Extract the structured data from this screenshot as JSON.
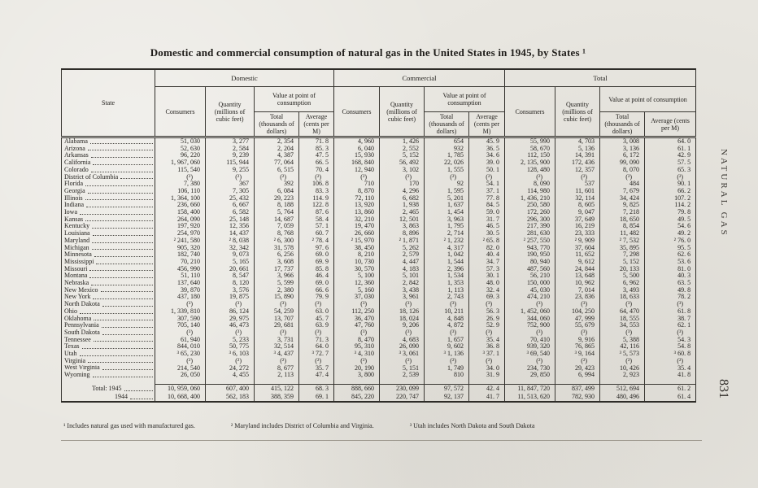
{
  "page": {
    "title": "Domestic and commercial consumption of natural gas in the United States in 1945, by States ¹",
    "side_label": "NATURAL GAS",
    "page_number": "831"
  },
  "table": {
    "state_header": "State",
    "groups": [
      {
        "label": "Domestic"
      },
      {
        "label": "Commercial"
      },
      {
        "label": "Total"
      }
    ],
    "sub_headers": {
      "consumers": "Consumers",
      "quantity": "Quantity (millions of cubic feet)",
      "value": "Value at point of consumption",
      "total": "Total (thousands of dollars)",
      "average": "Average (cents per M)"
    },
    "rows": [
      {
        "state": "Alabama",
        "cells": [
          "51, 030",
          "3, 277",
          "2, 354",
          "71. 8",
          "4, 960",
          "1, 426",
          "654",
          "45. 9",
          "55, 990",
          "4, 703",
          "3, 008",
          "64. 0"
        ]
      },
      {
        "state": "Arizona",
        "cells": [
          "52, 630",
          "2, 584",
          "2, 204",
          "85. 3",
          "6, 040",
          "2, 552",
          "932",
          "36. 5",
          "58, 670",
          "5, 136",
          "3, 136",
          "61. 1"
        ]
      },
      {
        "state": "Arkansas",
        "cells": [
          "96, 220",
          "9, 239",
          "4, 387",
          "47. 5",
          "15, 930",
          "5, 152",
          "1, 785",
          "34. 6",
          "112, 150",
          "14, 391",
          "6, 172",
          "42. 9"
        ]
      },
      {
        "state": "California",
        "cells": [
          "1, 967, 060",
          "115, 944",
          "77, 064",
          "66. 5",
          "168, 840",
          "56, 492",
          "22, 026",
          "39. 0",
          "2, 135, 900",
          "172, 436",
          "99, 090",
          "57. 5"
        ]
      },
      {
        "state": "Colorado",
        "cells": [
          "115, 540",
          "9, 255",
          "6, 515",
          "70. 4",
          "12, 940",
          "3, 102",
          "1, 555",
          "50. 1",
          "128, 480",
          "12, 357",
          "8, 070",
          "65. 3"
        ]
      },
      {
        "state": "District of Columbia",
        "cells": [
          "(²)",
          "(²)",
          "(²)",
          "(²)",
          "(²)",
          "(²)",
          "(²)",
          "(²)",
          "(²)",
          "(²)",
          "(²)",
          "(²)"
        ]
      },
      {
        "state": "Florida",
        "cells": [
          "7, 380",
          "367",
          "392",
          "106. 8",
          "710",
          "170",
          "92",
          "54. 1",
          "8, 090",
          "537",
          "484",
          "90. 1"
        ]
      },
      {
        "state": "Georgia",
        "cells": [
          "106, 110",
          "7, 305",
          "6, 084",
          "83. 3",
          "8, 870",
          "4, 296",
          "1, 595",
          "37. 1",
          "114, 980",
          "11, 601",
          "7, 679",
          "66. 2"
        ]
      },
      {
        "state": "Illinois",
        "cells": [
          "1, 364, 100",
          "25, 432",
          "29, 223",
          "114. 9",
          "72, 110",
          "6, 682",
          "5, 201",
          "77. 8",
          "1, 436, 210",
          "32, 114",
          "34, 424",
          "107. 2"
        ]
      },
      {
        "state": "Indiana",
        "cells": [
          "236, 660",
          "6, 667",
          "8, 188",
          "122. 8",
          "13, 920",
          "1, 938",
          "1, 637",
          "84. 5",
          "250, 580",
          "8, 605",
          "9, 825",
          "114. 2"
        ]
      },
      {
        "state": "Iowa",
        "cells": [
          "158, 400",
          "6, 582",
          "5, 764",
          "87. 6",
          "13, 860",
          "2, 465",
          "1, 454",
          "59. 0",
          "172, 260",
          "9, 047",
          "7, 218",
          "79. 8"
        ]
      },
      {
        "state": "Kansas",
        "cells": [
          "264, 090",
          "25, 148",
          "14, 687",
          "58. 4",
          "32, 210",
          "12, 501",
          "3, 963",
          "31. 7",
          "296, 300",
          "37, 649",
          "18, 650",
          "49. 5"
        ]
      },
      {
        "state": "Kentucky",
        "cells": [
          "197, 920",
          "12, 356",
          "7, 059",
          "57. 1",
          "19, 470",
          "3, 863",
          "1, 795",
          "46. 5",
          "217, 390",
          "16, 219",
          "8, 854",
          "54. 6"
        ]
      },
      {
        "state": "Louisiana",
        "cells": [
          "254, 970",
          "14, 437",
          "8, 768",
          "60. 7",
          "26, 660",
          "8, 896",
          "2, 714",
          "30. 5",
          "281, 630",
          "23, 333",
          "11, 482",
          "49. 2"
        ]
      },
      {
        "state": "Maryland",
        "cells": [
          "² 241, 580",
          "² 8, 038",
          "² 6, 300",
          "² 78. 4",
          "² 15, 970",
          "² 1, 871",
          "² 1, 232",
          "² 65. 8",
          "² 257, 550",
          "² 9, 909",
          "² 7, 532",
          "² 76. 0"
        ]
      },
      {
        "state": "Michigan",
        "cells": [
          "905, 320",
          "32, 342",
          "31, 578",
          "97. 6",
          "38, 450",
          "5, 262",
          "4, 317",
          "82. 0",
          "943, 770",
          "37, 604",
          "35, 895",
          "95. 5"
        ]
      },
      {
        "state": "Minnesota",
        "cells": [
          "182, 740",
          "9, 073",
          "6, 256",
          "69. 0",
          "8, 210",
          "2, 579",
          "1, 042",
          "40. 4",
          "190, 950",
          "11, 652",
          "7, 298",
          "62. 6"
        ]
      },
      {
        "state": "Mississippi",
        "cells": [
          "70, 210",
          "5, 165",
          "3, 608",
          "69. 9",
          "10, 730",
          "4, 447",
          "1, 544",
          "34. 7",
          "80, 940",
          "9, 612",
          "5, 152",
          "53. 6"
        ]
      },
      {
        "state": "Missouri",
        "cells": [
          "456, 990",
          "20, 661",
          "17, 737",
          "85. 8",
          "30, 570",
          "4, 183",
          "2, 396",
          "57. 3",
          "487, 560",
          "24, 844",
          "20, 133",
          "81. 0"
        ]
      },
      {
        "state": "Montana",
        "cells": [
          "51, 110",
          "8, 547",
          "3, 966",
          "46. 4",
          "5, 100",
          "5, 101",
          "1, 534",
          "30. 1",
          "56, 210",
          "13, 648",
          "5, 500",
          "40. 3"
        ]
      },
      {
        "state": "Nebraska",
        "cells": [
          "137, 640",
          "8, 120",
          "5, 599",
          "69. 0",
          "12, 360",
          "2, 842",
          "1, 353",
          "48. 0",
          "150, 000",
          "10, 962",
          "6, 962",
          "63. 5"
        ]
      },
      {
        "state": "New Mexico",
        "cells": [
          "39, 870",
          "3, 576",
          "2, 380",
          "66. 6",
          "5, 160",
          "3, 438",
          "1, 113",
          "32. 4",
          "45, 030",
          "7, 014",
          "3, 493",
          "49. 8"
        ]
      },
      {
        "state": "New York",
        "cells": [
          "437, 180",
          "19, 875",
          "15, 890",
          "79. 9",
          "37, 030",
          "3, 961",
          "2, 743",
          "69. 3",
          "474, 210",
          "23, 836",
          "18, 633",
          "78. 2"
        ]
      },
      {
        "state": "North Dakota",
        "cells": [
          "(³)",
          "(³)",
          "(³)",
          "(³)",
          "(³)",
          "(³)",
          "(³)",
          "(³)",
          "(³)",
          "(³)",
          "(³)",
          "(³)"
        ]
      },
      {
        "state": "Ohio",
        "cells": [
          "1, 339, 810",
          "86, 124",
          "54, 259",
          "63. 0",
          "112, 250",
          "18, 126",
          "10, 211",
          "56. 3",
          "1, 452, 060",
          "104, 250",
          "64, 470",
          "61. 8"
        ]
      },
      {
        "state": "Oklahoma",
        "cells": [
          "307, 590",
          "29, 975",
          "13, 707",
          "45. 7",
          "36, 470",
          "18, 024",
          "4, 848",
          "26. 9",
          "344, 060",
          "47, 999",
          "18, 555",
          "38. 7"
        ]
      },
      {
        "state": "Pennsylvania",
        "cells": [
          "705, 140",
          "46, 473",
          "29, 681",
          "63. 9",
          "47, 760",
          "9, 206",
          "4, 872",
          "52. 9",
          "752, 900",
          "55, 679",
          "34, 553",
          "62. 1"
        ]
      },
      {
        "state": "South Dakota",
        "cells": [
          "(³)",
          "(³)",
          "(³)",
          "(³)",
          "(³)",
          "(³)",
          "(³)",
          "(³)",
          "(³)",
          "(³)",
          "(³)",
          "(³)"
        ]
      },
      {
        "state": "Tennessee",
        "cells": [
          "61, 940",
          "5, 233",
          "3, 731",
          "71. 3",
          "8, 470",
          "4, 683",
          "1, 657",
          "35. 4",
          "70, 410",
          "9, 916",
          "5, 388",
          "54. 3"
        ]
      },
      {
        "state": "Texas",
        "cells": [
          "844, 010",
          "50, 775",
          "32, 514",
          "64. 0",
          "95, 310",
          "26, 090",
          "9, 602",
          "36. 8",
          "939, 320",
          "76, 865",
          "42, 116",
          "54. 8"
        ]
      },
      {
        "state": "Utah",
        "cells": [
          "³ 65, 230",
          "³ 6, 103",
          "³ 4, 437",
          "³ 72. 7",
          "³ 4, 310",
          "³ 3, 061",
          "³ 1, 136",
          "³ 37. 1",
          "³ 69, 540",
          "³ 9, 164",
          "³ 5, 573",
          "³ 60. 8"
        ]
      },
      {
        "state": "Virginia",
        "cells": [
          "(²)",
          "(²)",
          "(²)",
          "(²)",
          "(²)",
          "(²)",
          "(²)",
          "(²)",
          "(²)",
          "(²)",
          "(²)",
          "(²)"
        ]
      },
      {
        "state": "West Virginia",
        "cells": [
          "214, 540",
          "24, 272",
          "8, 677",
          "35. 7",
          "20, 190",
          "5, 151",
          "1, 749",
          "34. 0",
          "234, 730",
          "29, 423",
          "10, 426",
          "35. 4"
        ]
      },
      {
        "state": "Wyoming",
        "cells": [
          "26, 050",
          "4, 455",
          "2, 113",
          "47. 4",
          "3, 800",
          "2, 539",
          "810",
          "31. 9",
          "29, 850",
          "6, 994",
          "2, 923",
          "41. 8"
        ]
      }
    ],
    "total_rows": [
      {
        "label": "Total: 1945",
        "cells": [
          "10, 959, 060",
          "607, 400",
          "415, 122",
          "68. 3",
          "888, 660",
          "230, 099",
          "97, 572",
          "42. 4",
          "11, 847, 720",
          "837, 499",
          "512, 694",
          "61. 2"
        ]
      },
      {
        "label": "1944",
        "cells": [
          "10, 668, 400",
          "562, 183",
          "388, 359",
          "69. 1",
          "845, 220",
          "220, 747",
          "92, 137",
          "41. 7",
          "11, 513, 620",
          "782, 930",
          "480, 496",
          "61. 4"
        ]
      }
    ],
    "footnotes": [
      "¹ Includes natural gas used with manufactured gas.",
      "² Maryland includes District of Columbia and Virginia.",
      "³ Utah includes North Dakota and South Dakota"
    ]
  }
}
